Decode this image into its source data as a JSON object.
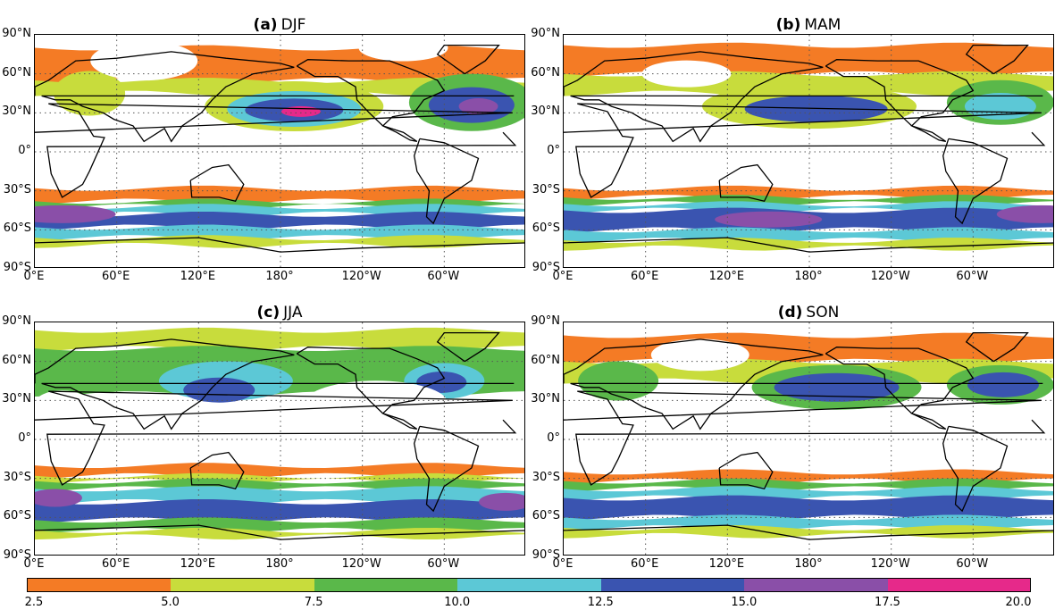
{
  "panels": [
    {
      "tag": "(a)",
      "season": "DJF"
    },
    {
      "tag": "(b)",
      "season": "MAM"
    },
    {
      "tag": "(c)",
      "season": "JJA"
    },
    {
      "tag": "(d)",
      "season": "SON"
    }
  ],
  "axes": {
    "lat_labels": [
      "90°N",
      "60°N",
      "30°N",
      "0°",
      "30°S",
      "60°S",
      "90°S"
    ],
    "lon_labels": [
      "0°E",
      "60°E",
      "120°E",
      "180°",
      "120°W",
      "60°W"
    ]
  },
  "colorbar": {
    "ticks": [
      "2.5",
      "5.0",
      "7.5",
      "10.0",
      "12.5",
      "15.0",
      "17.5",
      "20.0"
    ],
    "colors": [
      "#f47b25",
      "#c8dc3c",
      "#5ab84a",
      "#5cc8d6",
      "#3a54b0",
      "#8a4fa8",
      "#e6298a"
    ]
  },
  "map_colors": {
    "c1": "#f47b25",
    "c2": "#c8dc3c",
    "c3": "#5ab84a",
    "c4": "#5cc8d6",
    "c5": "#3a54b0",
    "c6": "#8a4fa8",
    "c7": "#e6298a"
  }
}
